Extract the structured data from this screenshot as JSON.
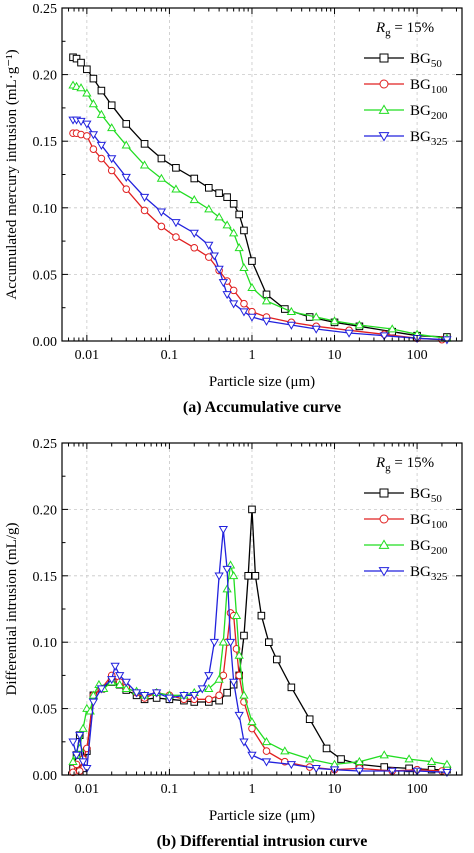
{
  "chart_data": [
    {
      "type": "line",
      "caption": "(a) Accumulative curve",
      "xlabel": "Particle size (μm)",
      "ylabel": "Accumulated mercury intrusion (mL·g⁻¹)",
      "xscale": "log",
      "xlim": [
        0.005,
        350
      ],
      "ylim": [
        0,
        0.25
      ],
      "xticks": [
        {
          "value": 0.01,
          "label": "0.01"
        },
        {
          "value": 0.1,
          "label": "0.1"
        },
        {
          "value": 1,
          "label": "1"
        },
        {
          "value": 10,
          "label": "10"
        },
        {
          "value": 100,
          "label": "100"
        }
      ],
      "yticks": [
        {
          "value": 0,
          "label": "0.00"
        },
        {
          "value": 0.05,
          "label": "0.05"
        },
        {
          "value": 0.1,
          "label": "0.10"
        },
        {
          "value": 0.15,
          "label": "0.15"
        },
        {
          "value": 0.2,
          "label": "0.20"
        },
        {
          "value": 0.25,
          "label": "0.25"
        }
      ],
      "grid": true,
      "legend_position": "top-right",
      "annotation": {
        "symbol": "R",
        "subscript": "g",
        "text": " = 15%"
      },
      "series": [
        {
          "name": "BG",
          "sub": "50",
          "color": "#000000",
          "marker": "square",
          "x": [
            0.0068,
            0.0075,
            0.0085,
            0.01,
            0.012,
            0.015,
            0.02,
            0.03,
            0.05,
            0.08,
            0.12,
            0.2,
            0.3,
            0.4,
            0.5,
            0.6,
            0.7,
            0.8,
            1.0,
            1.5,
            2.5,
            5,
            10,
            20,
            50,
            100,
            230
          ],
          "y": [
            0.213,
            0.212,
            0.209,
            0.204,
            0.197,
            0.188,
            0.177,
            0.163,
            0.148,
            0.137,
            0.13,
            0.122,
            0.115,
            0.111,
            0.108,
            0.103,
            0.095,
            0.083,
            0.06,
            0.035,
            0.024,
            0.018,
            0.014,
            0.011,
            0.007,
            0.004,
            0.003
          ]
        },
        {
          "name": "BG",
          "sub": "100",
          "color": "#e02020",
          "marker": "circle",
          "x": [
            0.0068,
            0.0075,
            0.0085,
            0.01,
            0.012,
            0.015,
            0.02,
            0.03,
            0.05,
            0.08,
            0.12,
            0.2,
            0.3,
            0.4,
            0.5,
            0.6,
            0.8,
            1.0,
            1.5,
            3,
            6,
            15,
            40,
            100,
            200
          ],
          "y": [
            0.156,
            0.156,
            0.155,
            0.154,
            0.144,
            0.137,
            0.128,
            0.114,
            0.098,
            0.086,
            0.078,
            0.07,
            0.063,
            0.053,
            0.045,
            0.038,
            0.028,
            0.022,
            0.018,
            0.014,
            0.011,
            0.008,
            0.005,
            0.002,
            0.001
          ]
        },
        {
          "name": "BG",
          "sub": "200",
          "color": "#22dd22",
          "marker": "triangle-up",
          "x": [
            0.0068,
            0.0075,
            0.0085,
            0.01,
            0.012,
            0.015,
            0.02,
            0.03,
            0.05,
            0.08,
            0.12,
            0.2,
            0.3,
            0.4,
            0.5,
            0.6,
            0.7,
            0.8,
            1.0,
            1.5,
            3,
            6,
            10,
            20,
            50,
            100,
            230
          ],
          "y": [
            0.192,
            0.191,
            0.19,
            0.186,
            0.178,
            0.17,
            0.16,
            0.147,
            0.132,
            0.122,
            0.114,
            0.106,
            0.099,
            0.093,
            0.087,
            0.081,
            0.07,
            0.055,
            0.04,
            0.03,
            0.022,
            0.018,
            0.015,
            0.012,
            0.009,
            0.005,
            0.002
          ]
        },
        {
          "name": "BG",
          "sub": "325",
          "color": "#2222dd",
          "marker": "triangle-down",
          "x": [
            0.0068,
            0.0075,
            0.0085,
            0.01,
            0.012,
            0.015,
            0.02,
            0.03,
            0.05,
            0.08,
            0.12,
            0.2,
            0.3,
            0.35,
            0.4,
            0.45,
            0.5,
            0.6,
            0.8,
            1.0,
            1.5,
            3,
            6,
            15,
            40,
            100,
            230
          ],
          "y": [
            0.166,
            0.166,
            0.165,
            0.163,
            0.155,
            0.147,
            0.137,
            0.123,
            0.108,
            0.097,
            0.089,
            0.081,
            0.072,
            0.064,
            0.054,
            0.044,
            0.035,
            0.028,
            0.022,
            0.018,
            0.015,
            0.012,
            0.009,
            0.006,
            0.004,
            0.002,
            0.001
          ]
        }
      ]
    },
    {
      "type": "line",
      "caption": "(b) Differential intrusion curve",
      "xlabel": "Particle size (μm)",
      "ylabel": "Differential intrusion (mL/g)",
      "xscale": "log",
      "xlim": [
        0.005,
        350
      ],
      "ylim": [
        0,
        0.25
      ],
      "xticks": [
        {
          "value": 0.01,
          "label": "0.01"
        },
        {
          "value": 0.1,
          "label": "0.1"
        },
        {
          "value": 1,
          "label": "1"
        },
        {
          "value": 10,
          "label": "10"
        },
        {
          "value": 100,
          "label": "100"
        }
      ],
      "yticks": [
        {
          "value": 0,
          "label": "0.00"
        },
        {
          "value": 0.05,
          "label": "0.05"
        },
        {
          "value": 0.1,
          "label": "0.10"
        },
        {
          "value": 0.15,
          "label": "0.15"
        },
        {
          "value": 0.2,
          "label": "0.20"
        },
        {
          "value": 0.25,
          "label": "0.25"
        }
      ],
      "grid": true,
      "legend_position": "top-right",
      "annotation": {
        "symbol": "R",
        "subscript": "g",
        "text": " = 15%"
      },
      "series": [
        {
          "name": "BG",
          "sub": "50",
          "color": "#000000",
          "marker": "square",
          "x": [
            0.0068,
            0.0075,
            0.0082,
            0.009,
            0.01,
            0.012,
            0.015,
            0.02,
            0.025,
            0.03,
            0.04,
            0.05,
            0.07,
            0.1,
            0.15,
            0.2,
            0.3,
            0.4,
            0.5,
            0.6,
            0.7,
            0.8,
            0.9,
            1.0,
            1.1,
            1.3,
            1.6,
            2.0,
            3,
            5,
            8,
            12,
            20,
            40,
            80,
            150,
            230
          ],
          "y": [
            0.005,
            0.015,
            0.03,
            0.005,
            0.018,
            0.06,
            0.065,
            0.07,
            0.068,
            0.064,
            0.06,
            0.057,
            0.058,
            0.057,
            0.056,
            0.055,
            0.055,
            0.056,
            0.062,
            0.068,
            0.075,
            0.105,
            0.15,
            0.2,
            0.15,
            0.12,
            0.1,
            0.087,
            0.066,
            0.042,
            0.02,
            0.012,
            0.008,
            0.006,
            0.005,
            0.004,
            0.004
          ]
        },
        {
          "name": "BG",
          "sub": "100",
          "color": "#e02020",
          "marker": "circle",
          "x": [
            0.0068,
            0.0075,
            0.0082,
            0.009,
            0.01,
            0.012,
            0.015,
            0.02,
            0.025,
            0.03,
            0.04,
            0.05,
            0.07,
            0.1,
            0.15,
            0.2,
            0.3,
            0.4,
            0.45,
            0.5,
            0.55,
            0.6,
            0.65,
            0.7,
            0.8,
            1.0,
            1.5,
            2.5,
            5,
            10,
            20,
            50,
            100,
            200
          ],
          "y": [
            0.002,
            0.008,
            0.003,
            0.012,
            0.02,
            0.06,
            0.065,
            0.075,
            0.07,
            0.066,
            0.062,
            0.058,
            0.062,
            0.06,
            0.057,
            0.057,
            0.057,
            0.06,
            0.075,
            0.1,
            0.122,
            0.12,
            0.095,
            0.075,
            0.055,
            0.035,
            0.018,
            0.01,
            0.006,
            0.004,
            0.005,
            0.003,
            0.004,
            0.003
          ]
        },
        {
          "name": "BG",
          "sub": "200",
          "color": "#22dd22",
          "marker": "triangle-up",
          "x": [
            0.0068,
            0.0075,
            0.0082,
            0.009,
            0.01,
            0.011,
            0.012,
            0.014,
            0.016,
            0.02,
            0.025,
            0.03,
            0.04,
            0.05,
            0.07,
            0.1,
            0.15,
            0.2,
            0.3,
            0.4,
            0.45,
            0.5,
            0.55,
            0.6,
            0.65,
            0.7,
            0.8,
            1.0,
            1.5,
            2.5,
            5,
            10,
            20,
            40,
            80,
            150,
            230
          ],
          "y": [
            0.01,
            0.015,
            0.02,
            0.035,
            0.05,
            0.048,
            0.06,
            0.068,
            0.065,
            0.07,
            0.068,
            0.065,
            0.063,
            0.06,
            0.062,
            0.06,
            0.06,
            0.062,
            0.065,
            0.072,
            0.1,
            0.14,
            0.158,
            0.15,
            0.12,
            0.09,
            0.06,
            0.04,
            0.025,
            0.018,
            0.012,
            0.008,
            0.01,
            0.015,
            0.012,
            0.01,
            0.008
          ]
        },
        {
          "name": "BG",
          "sub": "325",
          "color": "#2222dd",
          "marker": "triangle-down",
          "x": [
            0.0068,
            0.0075,
            0.0082,
            0.009,
            0.01,
            0.012,
            0.015,
            0.02,
            0.022,
            0.025,
            0.03,
            0.04,
            0.05,
            0.07,
            0.1,
            0.15,
            0.2,
            0.25,
            0.3,
            0.35,
            0.4,
            0.45,
            0.5,
            0.55,
            0.6,
            0.7,
            0.8,
            1.0,
            1.5,
            3,
            6,
            10,
            20,
            50,
            100,
            230
          ],
          "y": [
            0.025,
            0.015,
            0.03,
            0.01,
            0.005,
            0.055,
            0.065,
            0.072,
            0.082,
            0.075,
            0.07,
            0.062,
            0.06,
            0.062,
            0.058,
            0.06,
            0.06,
            0.065,
            0.075,
            0.1,
            0.15,
            0.185,
            0.155,
            0.1,
            0.07,
            0.045,
            0.025,
            0.015,
            0.01,
            0.008,
            0.005,
            0.004,
            0.003,
            0.003,
            0.003,
            0.002
          ]
        }
      ]
    }
  ]
}
